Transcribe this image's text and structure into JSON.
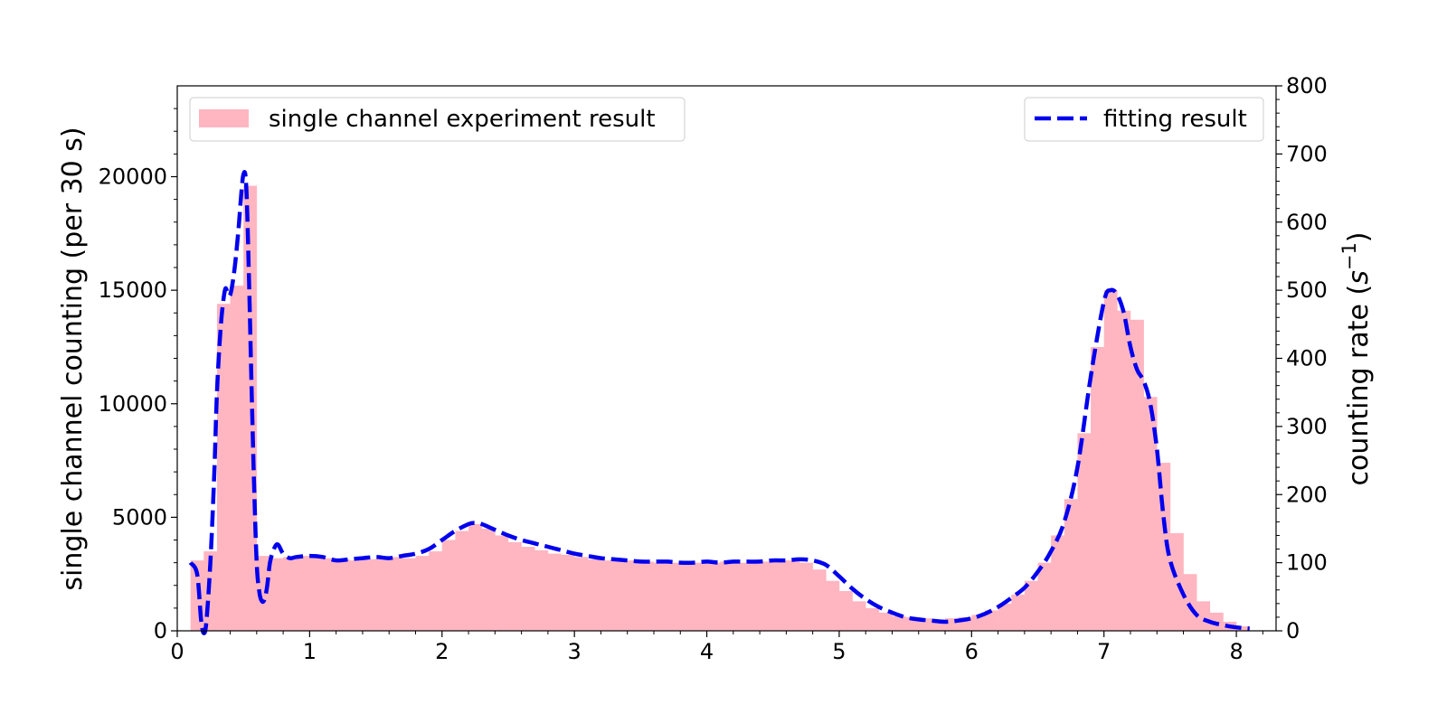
{
  "chart_data": {
    "type": "bar",
    "title": "",
    "xlabel": "",
    "xlim": [
      0,
      8.3
    ],
    "xticks": [
      "0",
      "1",
      "2",
      "3",
      "4",
      "5",
      "6",
      "7",
      "8"
    ],
    "ylabel_left": "single channel counting (per 30 s)",
    "ylim_left": [
      0,
      24000
    ],
    "yticks_left": [
      "0",
      "5000",
      "10000",
      "15000",
      "20000"
    ],
    "ylabel_right_main": "counting rate (",
    "ylabel_right_base": "s",
    "ylabel_right_exp": "−1",
    "ylabel_right_close": ")",
    "ylim_right": [
      0,
      800
    ],
    "yticks_right": [
      "0",
      "100",
      "200",
      "300",
      "400",
      "500",
      "600",
      "700",
      "800"
    ],
    "grid": false,
    "colors": {
      "bars": "#ffb6c1",
      "fit": "#0000ee",
      "axis": "#000000"
    },
    "series": [
      {
        "name": "single channel experiment result",
        "legend_position": "top-left",
        "bin_width": 0.1,
        "x": [
          0.1,
          0.2,
          0.3,
          0.4,
          0.5,
          0.6,
          0.7,
          0.8,
          0.9,
          1.0,
          1.1,
          1.2,
          1.3,
          1.4,
          1.5,
          1.6,
          1.7,
          1.8,
          1.9,
          2.0,
          2.1,
          2.2,
          2.3,
          2.4,
          2.5,
          2.6,
          2.7,
          2.8,
          2.9,
          3.0,
          3.1,
          3.2,
          3.3,
          3.4,
          3.5,
          3.6,
          3.7,
          3.8,
          3.9,
          4.0,
          4.1,
          4.2,
          4.3,
          4.4,
          4.5,
          4.6,
          4.7,
          4.8,
          4.9,
          5.0,
          5.1,
          5.2,
          5.3,
          5.4,
          5.5,
          5.6,
          5.7,
          5.8,
          5.9,
          6.0,
          6.1,
          6.2,
          6.3,
          6.4,
          6.5,
          6.6,
          6.7,
          6.8,
          6.9,
          7.0,
          7.1,
          7.2,
          7.3,
          7.4,
          7.5,
          7.6,
          7.7,
          7.8,
          7.9,
          8.0
        ],
        "values": [
          3100,
          3500,
          14400,
          15200,
          19600,
          3300,
          3200,
          3250,
          3300,
          3250,
          3200,
          3150,
          3100,
          3150,
          3200,
          3250,
          3200,
          3300,
          3500,
          4000,
          4400,
          4700,
          4500,
          4200,
          3900,
          3700,
          3550,
          3400,
          3350,
          3250,
          3150,
          3100,
          3100,
          3100,
          3050,
          3000,
          3000,
          3000,
          3000,
          3000,
          3050,
          3000,
          3050,
          3050,
          3100,
          3100,
          3000,
          2700,
          2200,
          1750,
          1300,
          1000,
          800,
          650,
          600,
          550,
          500,
          550,
          600,
          700,
          900,
          1200,
          1600,
          2200,
          3000,
          4200,
          5800,
          8700,
          12500,
          15000,
          14100,
          13700,
          10300,
          7400,
          4300,
          2500,
          1300,
          800,
          400,
          200
        ]
      },
      {
        "name": "fitting result",
        "legend_position": "top-right",
        "x": [
          0.1,
          0.15,
          0.18,
          0.2,
          0.22,
          0.25,
          0.28,
          0.3,
          0.33,
          0.36,
          0.38,
          0.4,
          0.43,
          0.46,
          0.48,
          0.5,
          0.52,
          0.54,
          0.56,
          0.58,
          0.6,
          0.62,
          0.64,
          0.66,
          0.68,
          0.7,
          0.73,
          0.76,
          0.8,
          0.85,
          0.9,
          1.0,
          1.1,
          1.2,
          1.3,
          1.4,
          1.5,
          1.6,
          1.7,
          1.8,
          1.9,
          2.0,
          2.1,
          2.2,
          2.25,
          2.3,
          2.4,
          2.5,
          2.6,
          2.7,
          2.8,
          2.9,
          3.0,
          3.1,
          3.2,
          3.3,
          3.4,
          3.5,
          3.6,
          3.7,
          3.8,
          3.9,
          4.0,
          4.1,
          4.2,
          4.3,
          4.4,
          4.5,
          4.6,
          4.7,
          4.8,
          4.9,
          5.0,
          5.1,
          5.2,
          5.3,
          5.4,
          5.5,
          5.6,
          5.7,
          5.8,
          5.9,
          6.0,
          6.1,
          6.2,
          6.3,
          6.4,
          6.5,
          6.6,
          6.7,
          6.8,
          6.9,
          7.0,
          7.05,
          7.1,
          7.15,
          7.2,
          7.25,
          7.3,
          7.35,
          7.4,
          7.45,
          7.5,
          7.6,
          7.7,
          7.8,
          7.9,
          8.0,
          8.1
        ],
        "values": [
          3000,
          2500,
          500,
          -100,
          400,
          3000,
          7000,
          10500,
          13500,
          15000,
          14900,
          14800,
          15800,
          17500,
          19000,
          20100,
          19700,
          16000,
          11000,
          6500,
          3000,
          1700,
          1300,
          1400,
          2000,
          3000,
          3600,
          3800,
          3400,
          3200,
          3250,
          3300,
          3250,
          3100,
          3150,
          3200,
          3250,
          3200,
          3300,
          3400,
          3600,
          4000,
          4400,
          4700,
          4750,
          4700,
          4450,
          4200,
          4000,
          3850,
          3700,
          3550,
          3400,
          3300,
          3200,
          3150,
          3100,
          3050,
          3050,
          3050,
          3000,
          3000,
          3050,
          3000,
          3050,
          3050,
          3050,
          3100,
          3100,
          3150,
          3100,
          2900,
          2400,
          1850,
          1400,
          1050,
          800,
          600,
          500,
          450,
          400,
          450,
          550,
          750,
          1050,
          1450,
          1900,
          2600,
          3500,
          4800,
          7200,
          11200,
          14500,
          15000,
          14800,
          14000,
          12500,
          11500,
          11000,
          10000,
          8000,
          5000,
          3100,
          1600,
          700,
          400,
          250,
          150,
          100
        ]
      }
    ]
  }
}
